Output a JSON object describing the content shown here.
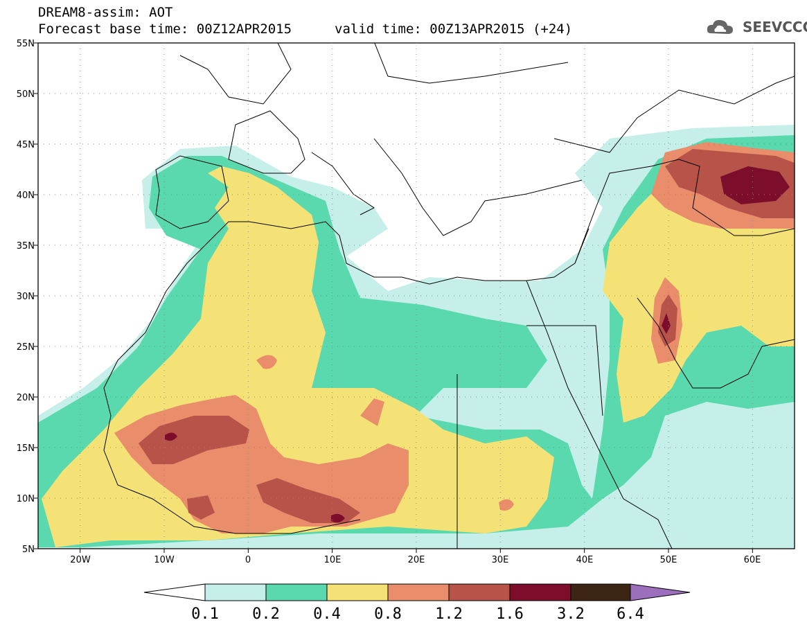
{
  "header": {
    "title_line1": "DREAM8-assim: AOT",
    "title_line2": "Forecast base time: 00Z12APR2015",
    "valid_time": "valid time: 00Z13APR2015 (+24)",
    "logo_text": "SEEVCCC"
  },
  "map": {
    "lat_labels": [
      "55N",
      "50N",
      "45N",
      "40N",
      "35N",
      "30N",
      "25N",
      "20N",
      "15N",
      "10N",
      "5N"
    ],
    "lon_labels": [
      "20W",
      "10W",
      "0",
      "10E",
      "20E",
      "30E",
      "40E",
      "50E",
      "60E"
    ],
    "lat_range": [
      5,
      55
    ],
    "lon_range": [
      -25,
      65
    ]
  },
  "colorbar": {
    "labels": [
      "0.1",
      "0.2",
      "0.4",
      "0.8",
      "1.2",
      "1.6",
      "3.2",
      "6.4"
    ],
    "colors": [
      "#c6efe9",
      "#5ad9ae",
      "#f5e277",
      "#e98d6a",
      "#b8534a",
      "#7c0e2b",
      "#3d2516",
      "#9b6fbb"
    ],
    "extend_low_color": "#ffffff"
  }
}
